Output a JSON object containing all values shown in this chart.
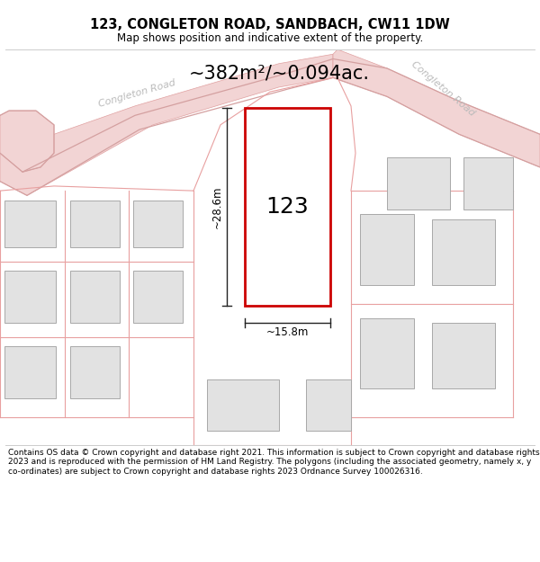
{
  "title": "123, CONGLETON ROAD, SANDBACH, CW11 1DW",
  "subtitle": "Map shows position and indicative extent of the property.",
  "area_label": "~382m²/~0.094ac.",
  "property_number": "123",
  "width_label": "~15.8m",
  "height_label": "~28.6m",
  "footer": "Contains OS data © Crown copyright and database right 2021. This information is subject to Crown copyright and database rights 2023 and is reproduced with the permission of HM Land Registry. The polygons (including the associated geometry, namely x, y co-ordinates) are subject to Crown copyright and database rights 2023 Ordnance Survey 100026316.",
  "bg_color": "#ffffff",
  "map_bg": "#f9f6f6",
  "road_fill": "#f2d4d4",
  "road_edge": "#e0a0a0",
  "parcel_fill": "#e8e8e8",
  "parcel_edge": "#b0b0b0",
  "property_fill": "#ffffff",
  "property_edge": "#cc0000",
  "dim_line_color": "#222222",
  "road_label_color": "#bbbbbb",
  "title_fontsize": 10.5,
  "subtitle_fontsize": 8.5,
  "area_fontsize": 15,
  "number_fontsize": 18,
  "dim_fontsize": 8.5,
  "road_fontsize": 8,
  "footer_fontsize": 6.5,
  "separator_color": "#cccccc"
}
